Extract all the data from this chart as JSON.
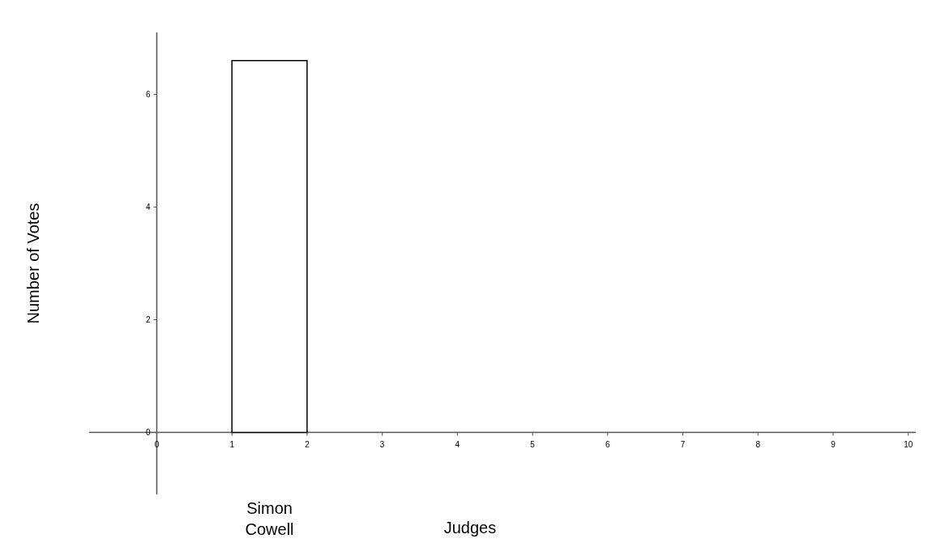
{
  "chart_data": {
    "type": "histogram",
    "xlabel": "Judges",
    "ylabel": "Number of Votes",
    "bins": [
      1,
      2
    ],
    "values": [
      6.6
    ],
    "color": "#ffffff",
    "xlim": [
      -0.9,
      10.1
    ],
    "ylim": [
      -1.1,
      7.1
    ],
    "xticks": [
      0,
      1,
      2,
      3,
      4,
      5,
      6,
      7,
      8,
      9,
      10
    ],
    "yticks": [
      0,
      2,
      4,
      6
    ],
    "annotations": [
      "Simon Cowell"
    ],
    "grid": false
  }
}
